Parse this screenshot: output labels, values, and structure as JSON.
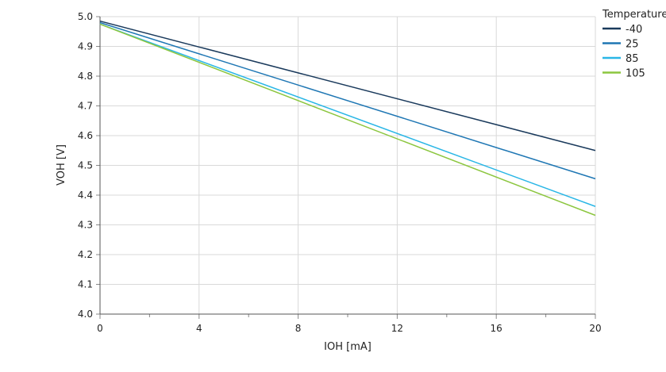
{
  "chart_data": {
    "type": "line",
    "xlabel": "IOH [mA]",
    "ylabel": "VOH [V]",
    "xlim": [
      0,
      20
    ],
    "ylim": [
      4.0,
      5.0
    ],
    "xticks": [
      0,
      4,
      8,
      12,
      16,
      20
    ],
    "yticks": [
      4.0,
      4.1,
      4.2,
      4.3,
      4.4,
      4.5,
      4.6,
      4.7,
      4.8,
      4.9,
      5.0
    ],
    "xtick_labels": [
      "0",
      "4",
      "8",
      "12",
      "16",
      "20"
    ],
    "ytick_labels": [
      "4.0",
      "4.1",
      "4.2",
      "4.3",
      "4.4",
      "4.5",
      "4.6",
      "4.7",
      "4.8",
      "4.9",
      "5.0"
    ],
    "grid": true,
    "legend": {
      "title": "Temperature",
      "placement": "top-right"
    },
    "series": [
      {
        "name": "-40",
        "color": "#1a3a5c",
        "x": [
          0,
          20
        ],
        "y": [
          4.985,
          4.55
        ]
      },
      {
        "name": "25",
        "color": "#1f77b4",
        "x": [
          0,
          20
        ],
        "y": [
          4.98,
          4.455
        ]
      },
      {
        "name": "85",
        "color": "#29b6e6",
        "x": [
          0,
          20
        ],
        "y": [
          4.975,
          4.362
        ]
      },
      {
        "name": "105",
        "color": "#8cc63f",
        "x": [
          0,
          20
        ],
        "y": [
          4.975,
          4.332
        ]
      }
    ]
  }
}
